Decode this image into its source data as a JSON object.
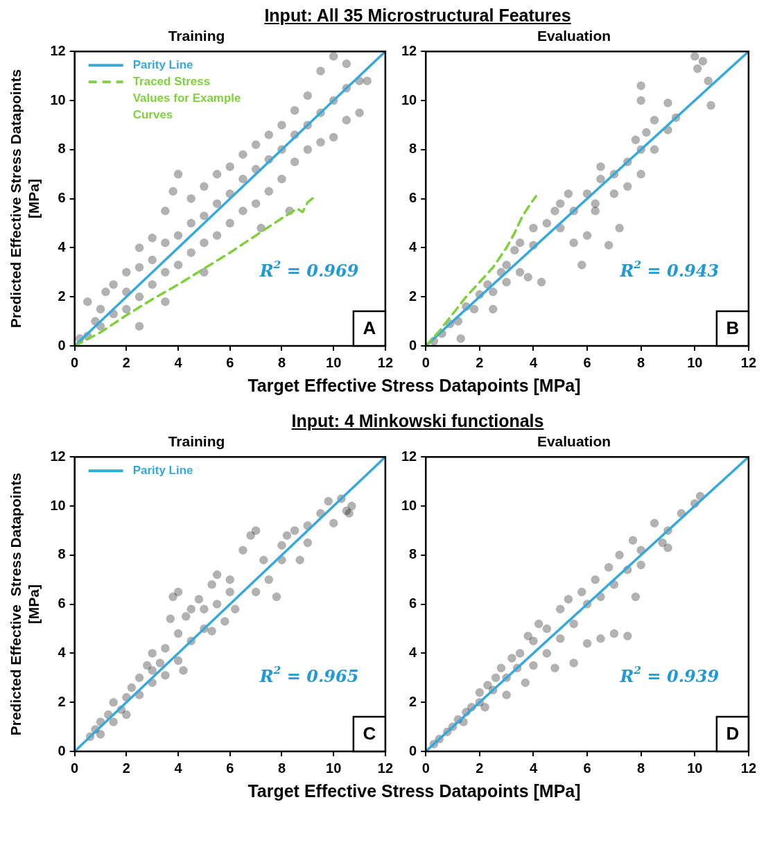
{
  "chart_data": [
    {
      "type": "scatter",
      "title": "Input: All 35 Microstructural Features",
      "subtitle": "Training",
      "xlabel": "Target Effective Stress Datapoints [MPa]",
      "ylabel": "Predicted Effective Stress Datapoints [MPa]",
      "xlim": [
        0,
        12
      ],
      "ylim": [
        0,
        12
      ],
      "xticks": [
        0,
        2,
        4,
        6,
        8,
        10,
        12
      ],
      "yticks": [
        0,
        2,
        4,
        6,
        8,
        10,
        12
      ],
      "grid": false,
      "legend": "top left",
      "annotations": [
        "R$^{2}$ = 0.969",
        "A"
      ],
      "series": [
        {
          "marker": "circle",
          "color": "#000000",
          "x": [
            0.2,
            0.5,
            0.8,
            1,
            1,
            1.2,
            0.5,
            1.5,
            1.5,
            2,
            2,
            2,
            2.5,
            2.5,
            2.5,
            3,
            3,
            3,
            3.5,
            3.5,
            3.5,
            3.8,
            4,
            4,
            4,
            4.5,
            4.5,
            4.5,
            5,
            5,
            5,
            5.5,
            5.5,
            5.5,
            6,
            6,
            6,
            6.5,
            6.5,
            6.5,
            7,
            7,
            7,
            7.5,
            7.5,
            7.5,
            8,
            8,
            8,
            8.5,
            8.5,
            8.5,
            9,
            9,
            9,
            9.5,
            9.5,
            9.5,
            10,
            10,
            10,
            10.5,
            10.5,
            10.5,
            11,
            11,
            11.3,
            2.5,
            3.5,
            5,
            7.2,
            8.3
          ],
          "values": [
            0.3,
            0.4,
            1.0,
            0.8,
            1.5,
            2.2,
            1.8,
            1.3,
            2.5,
            1.5,
            2.2,
            3.0,
            2.0,
            3.2,
            4.0,
            2.5,
            3.5,
            4.4,
            3.0,
            4.2,
            5.5,
            6.3,
            7.0,
            3.3,
            4.5,
            3.8,
            5.0,
            6.0,
            4.2,
            5.3,
            6.5,
            4.5,
            5.8,
            7.0,
            5.0,
            6.2,
            7.3,
            5.5,
            6.8,
            7.8,
            5.8,
            7.2,
            8.2,
            6.3,
            7.6,
            8.6,
            6.8,
            8.0,
            9.0,
            7.5,
            8.6,
            9.6,
            8.0,
            9.0,
            10.2,
            8.3,
            9.5,
            11.2,
            8.5,
            10.0,
            11.8,
            9.2,
            10.5,
            11.5,
            9.5,
            10.8,
            10.8,
            0.8,
            1.8,
            3.0,
            4.8,
            5.5
          ]
        },
        {
          "type": "line",
          "name": "Parity Line",
          "color": "#35a9dc",
          "x": [
            0,
            12
          ],
          "values": [
            0,
            12
          ]
        },
        {
          "type": "line",
          "name": "Traced Stress Values for Example Curves",
          "color": "#7fd13b",
          "line_style": "dashed",
          "x": [
            0,
            1,
            2,
            3,
            4,
            5,
            6,
            7,
            8,
            8.6,
            8.8,
            9.0,
            9.3
          ],
          "values": [
            0,
            0.55,
            1.25,
            1.9,
            2.5,
            3.15,
            3.8,
            4.5,
            5.2,
            5.6,
            5.45,
            5.85,
            6.1
          ]
        }
      ]
    },
    {
      "type": "scatter",
      "subtitle": "Evaluation",
      "xlim": [
        0,
        12
      ],
      "ylim": [
        0,
        12
      ],
      "xticks": [
        0,
        2,
        4,
        6,
        8,
        10,
        12
      ],
      "yticks": [
        0,
        2,
        4,
        6,
        8,
        10,
        12
      ],
      "grid": false,
      "annotations": [
        "R$^{2}$ = 0.943",
        "B"
      ],
      "series": [
        {
          "marker": "circle",
          "color": "#000000",
          "x": [
            0.3,
            0.6,
            0.9,
            1.2,
            1.5,
            1.8,
            2,
            2.3,
            2.5,
            2.8,
            3,
            3,
            3.3,
            3.5,
            3.5,
            3.8,
            4,
            4,
            4.3,
            4.5,
            4.8,
            5,
            5,
            5.3,
            5.5,
            5.5,
            5.8,
            6,
            6,
            6.3,
            6.5,
            6.5,
            6.8,
            7,
            7,
            7.2,
            7.5,
            7.5,
            7.8,
            8,
            8,
            8.2,
            8.5,
            8.5,
            9,
            9,
            9.3,
            10,
            10.1,
            10.3,
            10.5,
            10.6,
            8,
            8,
            2.5,
            1.3,
            6.3
          ],
          "values": [
            0.2,
            0.5,
            0.9,
            1.0,
            1.6,
            1.5,
            2.1,
            2.5,
            2.2,
            3.0,
            3.3,
            2.6,
            3.9,
            3.0,
            4.2,
            2.8,
            4.1,
            4.8,
            2.6,
            5.0,
            5.5,
            4.8,
            5.8,
            6.2,
            5.5,
            4.2,
            3.3,
            6.2,
            4.5,
            5.5,
            6.8,
            7.3,
            4.1,
            6.2,
            7.0,
            4.8,
            7.5,
            6.5,
            8.4,
            8.0,
            7.0,
            8.7,
            8.0,
            9.2,
            8.8,
            9.9,
            9.3,
            11.8,
            11.3,
            11.6,
            10.8,
            9.8,
            10.0,
            10.6,
            1.5,
            0.3,
            5.8
          ]
        },
        {
          "type": "line",
          "color": "#35a9dc",
          "x": [
            0,
            12
          ],
          "values": [
            0,
            12
          ]
        },
        {
          "type": "line",
          "color": "#7fd13b",
          "line_style": "dashed",
          "x": [
            0,
            0.5,
            1,
            1.5,
            2,
            2.5,
            3,
            3.3,
            3.6,
            3.9,
            4.1
          ],
          "values": [
            0,
            0.6,
            1.3,
            2.0,
            2.6,
            3.2,
            4.0,
            4.6,
            5.3,
            5.8,
            6.1
          ]
        }
      ]
    },
    {
      "type": "scatter",
      "title": "Input: 4 Minkowski functionals",
      "subtitle": "Training",
      "xlabel": "Target Effective Stress Datapoints [MPa]",
      "ylabel": "Predicted Effective  Stress Datapoints [MPa]",
      "xlim": [
        0,
        12
      ],
      "ylim": [
        0,
        12
      ],
      "xticks": [
        0,
        2,
        4,
        6,
        8,
        10,
        12
      ],
      "yticks": [
        0,
        2,
        4,
        6,
        8,
        10,
        12
      ],
      "grid": false,
      "legend": "top left",
      "annotations": [
        "R$^{2}$ = 0.965",
        "C"
      ],
      "series": [
        {
          "marker": "circle",
          "color": "#000000",
          "x": [
            0.6,
            0.8,
            1,
            1,
            1.3,
            1.5,
            1.5,
            1.8,
            2,
            2,
            2.2,
            2.5,
            2.5,
            2.8,
            3,
            3,
            3,
            3.3,
            3.5,
            3.5,
            3.7,
            3.8,
            4,
            4,
            4,
            4.2,
            4.3,
            4.5,
            4.5,
            4.8,
            5,
            5,
            5.3,
            5.3,
            5.5,
            5.5,
            5.8,
            6,
            6,
            6.2,
            6.5,
            6.8,
            7,
            7,
            7.3,
            7.5,
            7.8,
            8,
            8,
            8.2,
            8.5,
            8.7,
            9,
            9,
            9.5,
            9.8,
            10,
            10.3,
            10.5,
            10.7,
            10.6
          ],
          "values": [
            0.6,
            0.9,
            0.7,
            1.2,
            1.5,
            1.2,
            2.0,
            1.7,
            2.2,
            1.5,
            2.6,
            2.3,
            3.0,
            3.5,
            2.8,
            3.3,
            4.0,
            3.6,
            4.2,
            3.1,
            5.4,
            6.3,
            6.5,
            4.8,
            3.7,
            3.3,
            5.5,
            5.8,
            4.5,
            6.2,
            5.8,
            5.0,
            4.9,
            6.8,
            7.2,
            6.0,
            5.3,
            6.5,
            7.0,
            5.8,
            8.2,
            8.8,
            9.0,
            6.5,
            7.8,
            7.0,
            6.3,
            7.8,
            8.4,
            8.8,
            9.0,
            7.8,
            9.2,
            8.5,
            9.7,
            10.2,
            9.3,
            10.3,
            9.8,
            10.0,
            9.7
          ]
        },
        {
          "type": "line",
          "name": "Parity Line",
          "color": "#35a9dc",
          "x": [
            0,
            12
          ],
          "values": [
            0,
            12
          ]
        }
      ]
    },
    {
      "type": "scatter",
      "subtitle": "Evaluation",
      "xlim": [
        0,
        12
      ],
      "ylim": [
        0,
        12
      ],
      "xticks": [
        0,
        2,
        4,
        6,
        8,
        10,
        12
      ],
      "yticks": [
        0,
        2,
        4,
        6,
        8,
        10,
        12
      ],
      "grid": false,
      "annotations": [
        "R$^{2}$ = 0.939",
        "D"
      ],
      "series": [
        {
          "marker": "circle",
          "color": "#000000",
          "x": [
            0.3,
            0.5,
            0.8,
            1,
            1.2,
            1.4,
            1.5,
            1.7,
            2,
            2,
            2.2,
            2.3,
            2.5,
            2.6,
            2.8,
            3,
            3,
            3.2,
            3.4,
            3.5,
            3.7,
            3.8,
            4,
            4,
            4.2,
            4.5,
            4.5,
            4.8,
            5,
            5,
            5.3,
            5.5,
            5.5,
            5.8,
            6,
            6,
            6.3,
            6.5,
            6.5,
            6.8,
            7,
            7,
            7.2,
            7.5,
            7.5,
            7.7,
            7.8,
            8,
            8,
            8.5,
            8.8,
            9,
            9,
            9.5,
            10,
            10.2
          ],
          "values": [
            0.3,
            0.5,
            0.8,
            1.0,
            1.3,
            1.2,
            1.6,
            1.8,
            2.0,
            2.4,
            1.8,
            2.7,
            2.5,
            3.0,
            3.4,
            3.0,
            2.3,
            3.8,
            3.4,
            4.0,
            2.8,
            4.7,
            4.5,
            3.5,
            5.2,
            5.0,
            4.0,
            3.4,
            5.8,
            4.6,
            6.2,
            5.2,
            3.6,
            6.5,
            6.0,
            4.4,
            7.0,
            6.3,
            4.6,
            7.5,
            6.8,
            4.8,
            8.0,
            7.4,
            4.7,
            8.6,
            6.3,
            8.2,
            7.6,
            9.3,
            8.5,
            8.3,
            9.0,
            9.7,
            10.1,
            10.4
          ]
        },
        {
          "type": "line",
          "color": "#35a9dc",
          "x": [
            0,
            12
          ],
          "values": [
            0,
            12
          ]
        }
      ]
    }
  ]
}
